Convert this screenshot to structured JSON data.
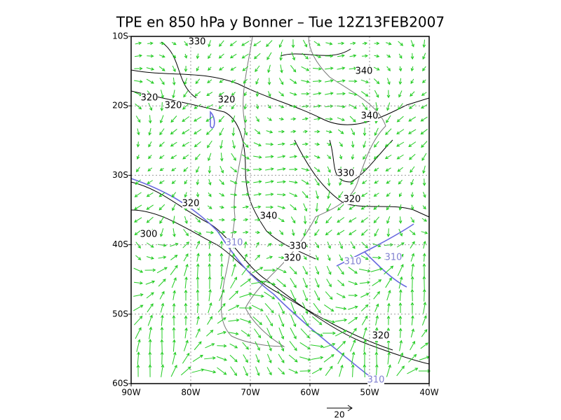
{
  "title": "TPE en 850 hPa y Bonner – Tue 12Z13FEB2007",
  "lat_labels": [
    "10S",
    "20S",
    "30S",
    "40S",
    "50S",
    "60S"
  ],
  "lon_labels": [
    "90W",
    "80W",
    "70W",
    "60W",
    "50W",
    "40W"
  ],
  "contour_labels": [
    "330",
    "340",
    "320",
    "320",
    "320",
    "340",
    "330",
    "320",
    "320",
    "340",
    "300",
    "310",
    "330",
    "320",
    "310",
    "310",
    "320",
    "310"
  ],
  "reference_vector_label": "20"
}
